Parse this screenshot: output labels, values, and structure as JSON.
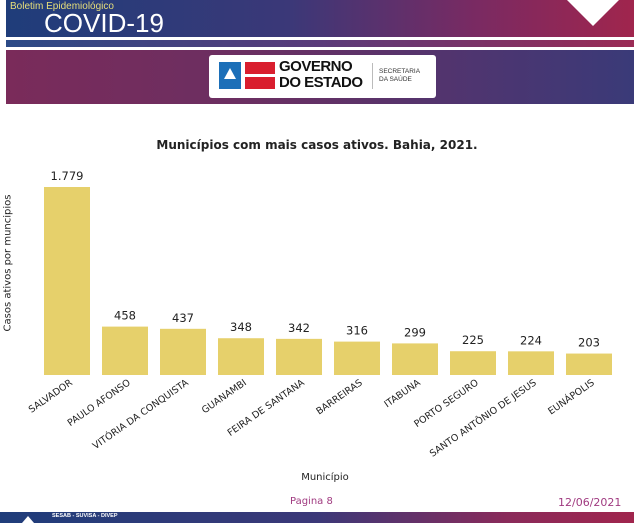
{
  "header": {
    "subtitle": "Boletim Epidemiológico",
    "title": "COVID-19"
  },
  "logo": {
    "line1": "GOVERNO",
    "line2": "DO ESTADO",
    "sec1": "SECRETARIA",
    "sec2": "DA SAÚDE"
  },
  "colors": {
    "bar": "#e6d06b",
    "footer_text": "#a03a80"
  },
  "chart_data": {
    "type": "bar",
    "title": "Municípios com mais casos ativos. Bahia, 2021.",
    "xlabel": "Município",
    "ylabel": "Casos ativos por muncipios",
    "categories": [
      "SALVADOR",
      "PAULO AFONSO",
      "VITÓRIA DA CONQUISTA",
      "GUANAMBI",
      "FEIRA DE SANTANA",
      "BARREIRAS",
      "ITABUNA",
      "PORTO SEGURO",
      "SANTO ANTÔNIO DE JESUS",
      "EUNÁPOLIS"
    ],
    "values": [
      1779,
      458,
      437,
      348,
      342,
      316,
      299,
      225,
      224,
      203
    ],
    "value_labels": [
      "1.779",
      "458",
      "437",
      "348",
      "342",
      "316",
      "299",
      "225",
      "224",
      "203"
    ],
    "ylim": [
      0,
      1779
    ],
    "grid": false
  },
  "footer": {
    "page": "Pagina 8",
    "date": "12/06/2021",
    "org": "SESAB - SUVISA - DIVEP"
  }
}
